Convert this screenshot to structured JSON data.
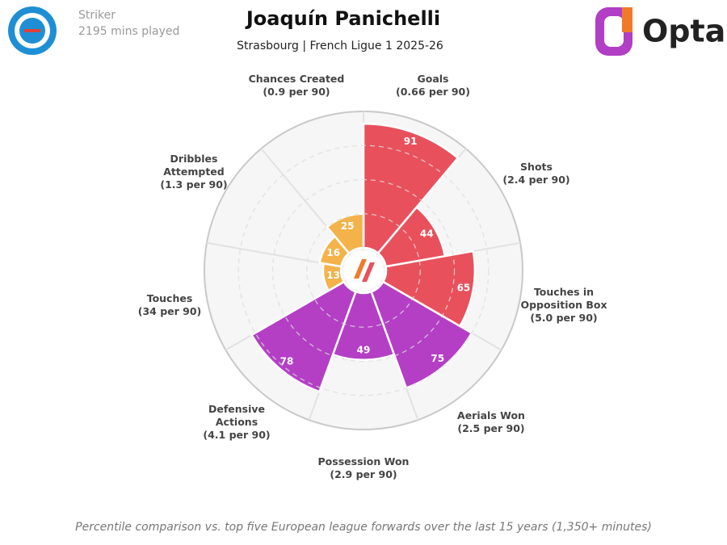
{
  "header": {
    "position": "Striker",
    "minutes": "2195 mins played",
    "brand": "Opta"
  },
  "chart_data": {
    "type": "radial-bar",
    "title": "Joaquín Panichelli",
    "subtitle": "Strasbourg | French Ligue 1 2025-26",
    "categories": [
      "Goals",
      "Shots",
      "Touches in Opposition Box",
      "Aerials Won",
      "Possession Won",
      "Defensive Actions",
      "Touches",
      "Dribbles Attempted",
      "Chances Created"
    ],
    "details": [
      "(0.66 per 90)",
      "(2.4 per 90)",
      "(5.0 per 90)",
      "(2.5 per 90)",
      "(2.9 per 90)",
      "(4.1 per 90)",
      "(34 per 90)",
      "(1.3 per 90)",
      "(0.9 per 90)"
    ],
    "values": [
      91,
      44,
      65,
      75,
      49,
      78,
      13,
      16,
      25
    ],
    "colors": [
      "#e8515c",
      "#e8515c",
      "#e8515c",
      "#b43fc5",
      "#b43fc5",
      "#b43fc5",
      "#f3b34a",
      "#f3b34a",
      "#f3b34a"
    ],
    "rlim": [
      0,
      100
    ],
    "rticks": [
      25,
      50,
      75
    ],
    "grid": true,
    "note": "Percentile comparison vs. top five European league forwards over the last 15 years (1,350+ minutes)"
  }
}
